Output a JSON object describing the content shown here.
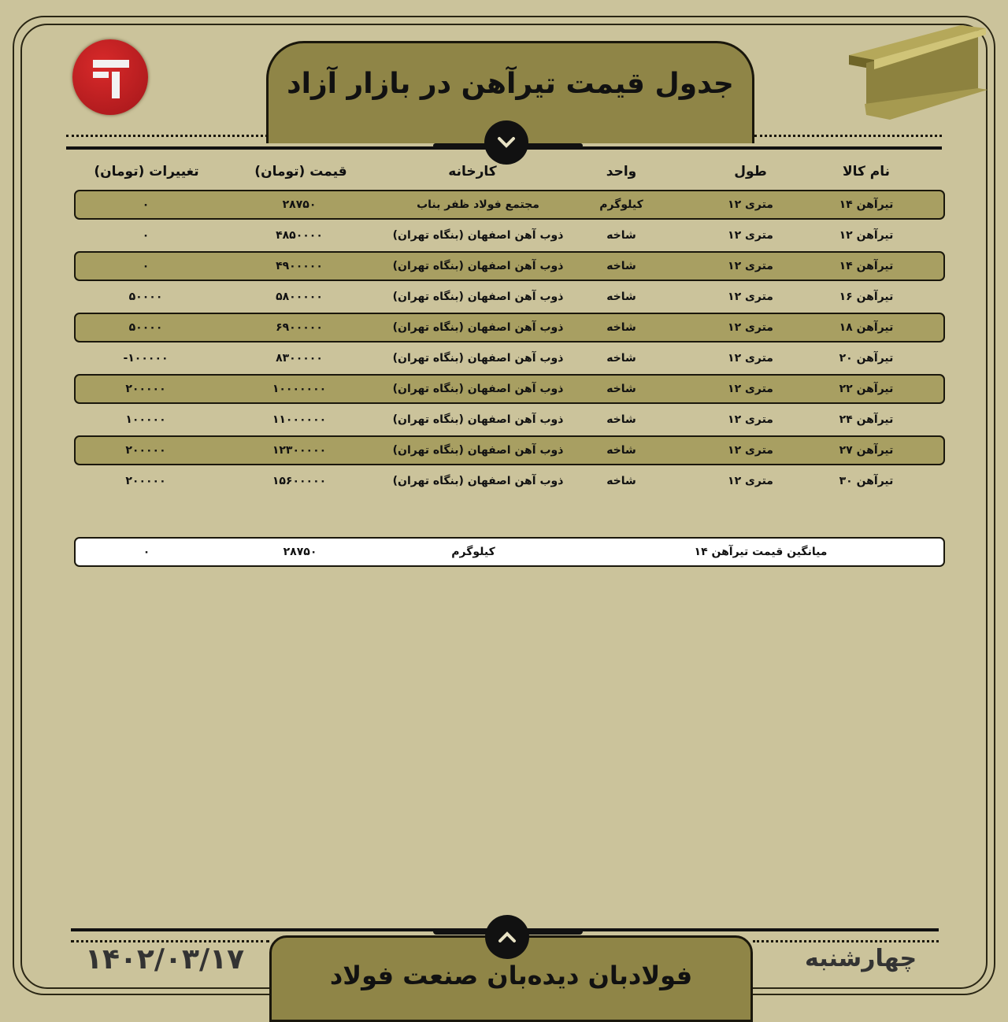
{
  "header": {
    "title": "جدول قیمت تیرآهن در بازار آزاد"
  },
  "colors": {
    "background": "#cbc39b",
    "accent_olive": "#8f8547",
    "row_highlight": "#a89f62",
    "logo_red": "#c01d20"
  },
  "icons": {
    "logo": "red-circle-t-logo",
    "beam": "steel-i-beam-icon",
    "top_toggle": "chevron-down-icon",
    "bottom_toggle": "chevron-up-icon"
  },
  "table": {
    "columns": [
      "نام کالا",
      "طول",
      "واحد",
      "کارخانه",
      "قیمت (تومان)",
      "تغییرات (تومان)"
    ],
    "rows": [
      {
        "name": "تیرآهن ۱۴",
        "length": "متری ۱۲",
        "unit": "کیلوگرم",
        "factory": "مجتمع فولاد ظفر بناب",
        "price": "۲۸۷۵۰",
        "change": "۰"
      },
      {
        "name": "تیرآهن ۱۲",
        "length": "متری ۱۲",
        "unit": "شاخه",
        "factory": "ذوب آهن اصفهان (بنگاه تهران)",
        "price": "۴۸۵۰۰۰۰",
        "change": "۰"
      },
      {
        "name": "تیرآهن ۱۴",
        "length": "متری ۱۲",
        "unit": "شاخه",
        "factory": "ذوب آهن اصفهان (بنگاه تهران)",
        "price": "۴۹۰۰۰۰۰",
        "change": "۰"
      },
      {
        "name": "تیرآهن ۱۶",
        "length": "متری ۱۲",
        "unit": "شاخه",
        "factory": "ذوب آهن اصفهان (بنگاه تهران)",
        "price": "۵۸۰۰۰۰۰",
        "change": "۵۰۰۰۰"
      },
      {
        "name": "تیرآهن ۱۸",
        "length": "متری ۱۲",
        "unit": "شاخه",
        "factory": "ذوب آهن اصفهان (بنگاه تهران)",
        "price": "۶۹۰۰۰۰۰",
        "change": "۵۰۰۰۰"
      },
      {
        "name": "تیرآهن ۲۰",
        "length": "متری ۱۲",
        "unit": "شاخه",
        "factory": "ذوب آهن اصفهان (بنگاه تهران)",
        "price": "۸۳۰۰۰۰۰",
        "change": "-۱۰۰۰۰۰"
      },
      {
        "name": "تیرآهن ۲۲",
        "length": "متری ۱۲",
        "unit": "شاخه",
        "factory": "ذوب آهن اصفهان (بنگاه تهران)",
        "price": "۱۰۰۰۰۰۰۰",
        "change": "۲۰۰۰۰۰"
      },
      {
        "name": "تیرآهن ۲۴",
        "length": "متری ۱۲",
        "unit": "شاخه",
        "factory": "ذوب آهن اصفهان (بنگاه تهران)",
        "price": "۱۱۰۰۰۰۰۰",
        "change": "۱۰۰۰۰۰"
      },
      {
        "name": "تیرآهن ۲۷",
        "length": "متری ۱۲",
        "unit": "شاخه",
        "factory": "ذوب آهن اصفهان (بنگاه تهران)",
        "price": "۱۲۳۰۰۰۰۰",
        "change": "۲۰۰۰۰۰"
      },
      {
        "name": "تیرآهن ۳۰",
        "length": "متری ۱۲",
        "unit": "شاخه",
        "factory": "ذوب آهن اصفهان (بنگاه تهران)",
        "price": "۱۵۶۰۰۰۰۰",
        "change": "۲۰۰۰۰۰"
      }
    ]
  },
  "average": {
    "label": "میانگین قیمت تیرآهن ۱۴",
    "unit": "کیلوگرم",
    "price": "۲۸۷۵۰",
    "change": "۰"
  },
  "footer": {
    "slogan": "فولادبان دیده‌بان صنعت فولاد",
    "date": "۱۴۰۲/۰۳/۱۷",
    "day": "چهارشنبه"
  }
}
